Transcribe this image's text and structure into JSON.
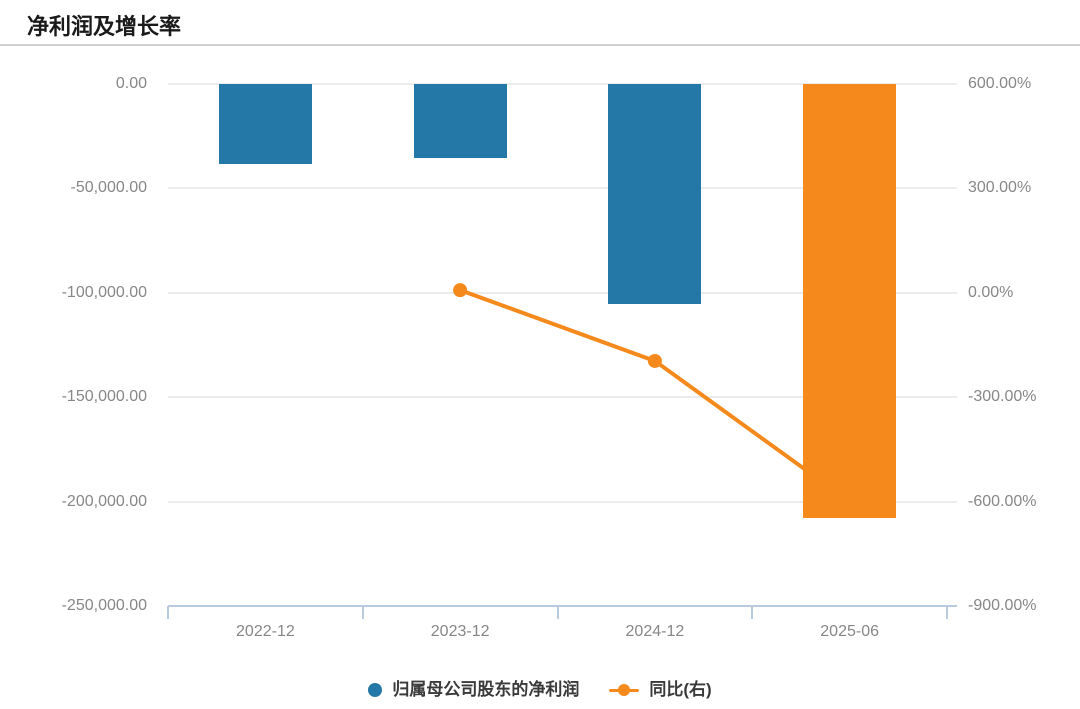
{
  "title": "净利润及增长率",
  "chart_data": {
    "type": "bar",
    "subtype": "bar+line dual-axis",
    "categories": [
      "2022-12",
      "2023-12",
      "2024-12",
      "2025-06"
    ],
    "series": [
      {
        "name": "归属母公司股东的净利润",
        "type": "bar",
        "axis": "left",
        "values": [
          -38500,
          -35600,
          -105300,
          -208000
        ],
        "colors": [
          "#2478a7",
          "#2478a7",
          "#2478a7",
          "#f5891b"
        ]
      },
      {
        "name": "同比(右)",
        "type": "line",
        "axis": "right",
        "values": [
          null,
          7.6,
          -195.8,
          -600
        ],
        "color": "#f5891b"
      }
    ],
    "left_axis": {
      "ticks": [
        "0.00",
        "-50,000.00",
        "-100,000.00",
        "-150,000.00",
        "-200,000.00",
        "-250,000.00"
      ],
      "range": [
        0,
        -250000
      ]
    },
    "right_axis": {
      "ticks": [
        "600.00%",
        "300.00%",
        "0.00%",
        "-300.00%",
        "-600.00%",
        "-900.00%"
      ],
      "range": [
        600,
        -900
      ]
    },
    "grid": true,
    "legend_position": "bottom"
  },
  "legend": [
    {
      "label": "归属母公司股东的净利润",
      "color": "#2478a7",
      "marker": "circle"
    },
    {
      "label": "同比(右)",
      "color": "#f5891b",
      "marker": "line-dot"
    }
  ],
  "colors": {
    "bar_blue": "#2478a7",
    "orange": "#f5891b",
    "axis_line": "#b9cbdf",
    "grid_line": "#ececec",
    "axis_text": "#878787",
    "legend_text": "#3a3a3a",
    "divider": "#d0d0d0",
    "title_text": "#1a1a1a"
  }
}
